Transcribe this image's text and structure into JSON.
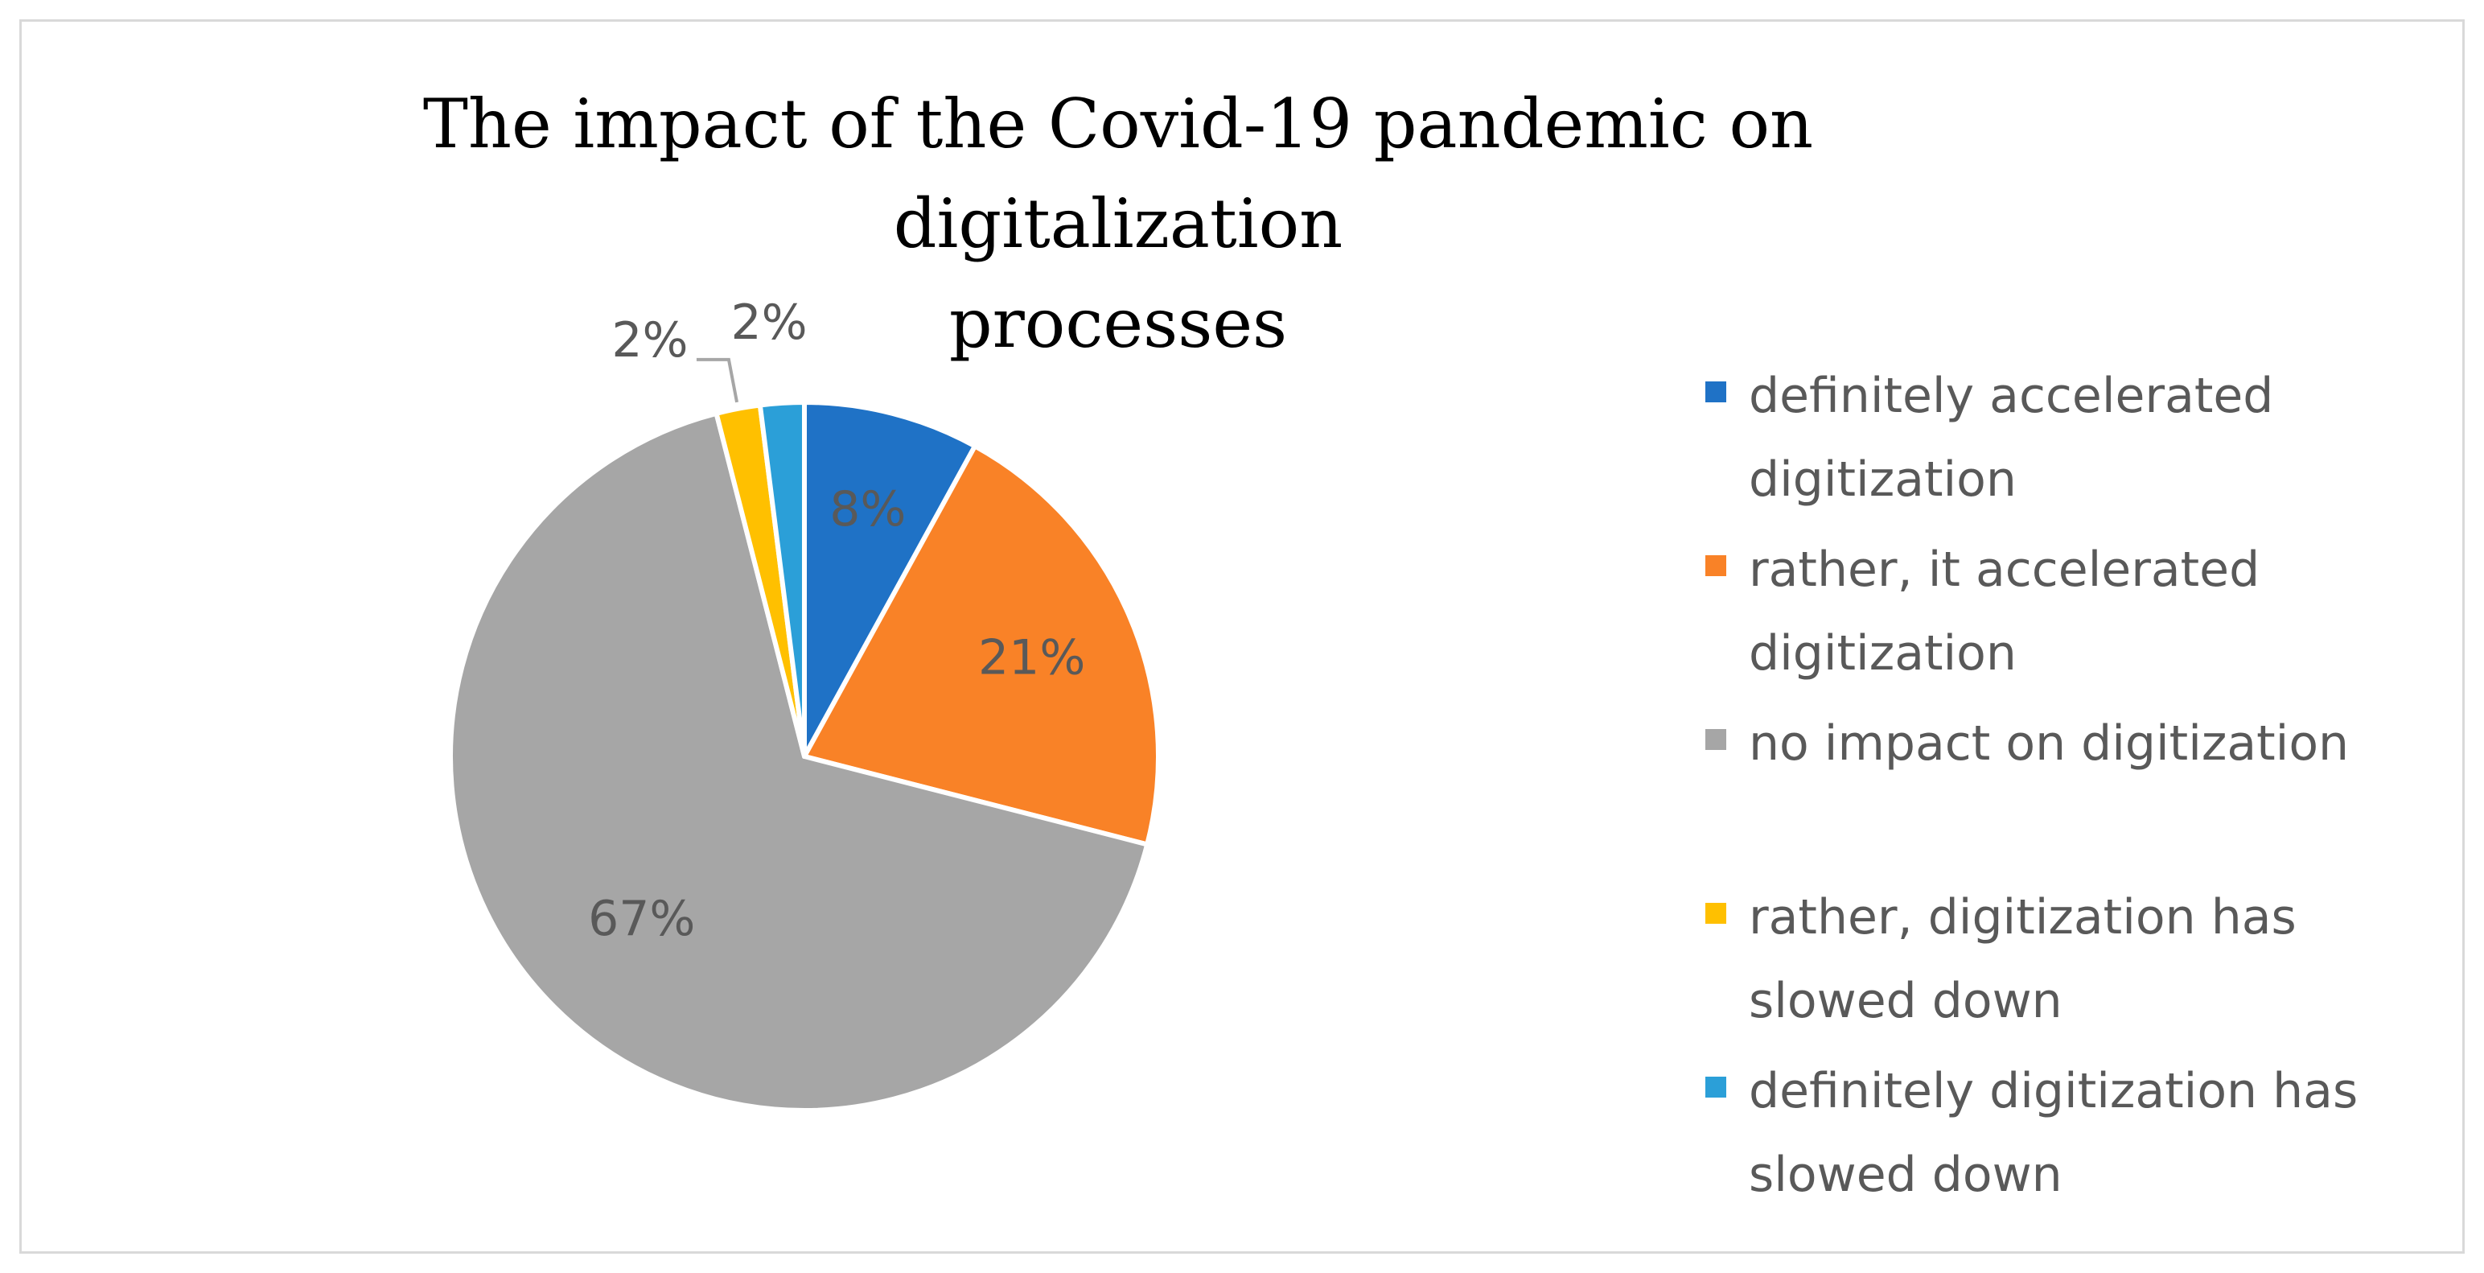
{
  "chart_data": {
    "type": "pie",
    "title": "The impact of the Covid-19 pandemic on digitalization processes",
    "title_lines": [
      "The impact of the Covid-19 pandemic on digitalization",
      "processes"
    ],
    "legend_position": "right",
    "slices": [
      {
        "label": "definitely accelerated digitization",
        "legend_lines": [
          "definitely accelerated",
          "digitization"
        ],
        "value": 8,
        "value_label": "8%",
        "color": "#1f72c6"
      },
      {
        "label": "rather, it accelerated digitization",
        "legend_lines": [
          "rather, it accelerated",
          "digitization"
        ],
        "value": 21,
        "value_label": "21%",
        "color": "#f98227"
      },
      {
        "label": "no impact on digitization",
        "legend_lines": [
          "no impact on digitization"
        ],
        "value": 67,
        "value_label": "67%",
        "color": "#a6a6a6"
      },
      {
        "label": "rather, digitization has slowed down",
        "legend_lines": [
          "rather, digitization has",
          "slowed down"
        ],
        "value": 2,
        "value_label": "2%",
        "color": "#ffc000"
      },
      {
        "label": "definitely digitization has slowed down",
        "legend_lines": [
          "definitely digitization has",
          "slowed down"
        ],
        "value": 2,
        "value_label": "2%",
        "color": "#2b9fd8"
      }
    ]
  }
}
